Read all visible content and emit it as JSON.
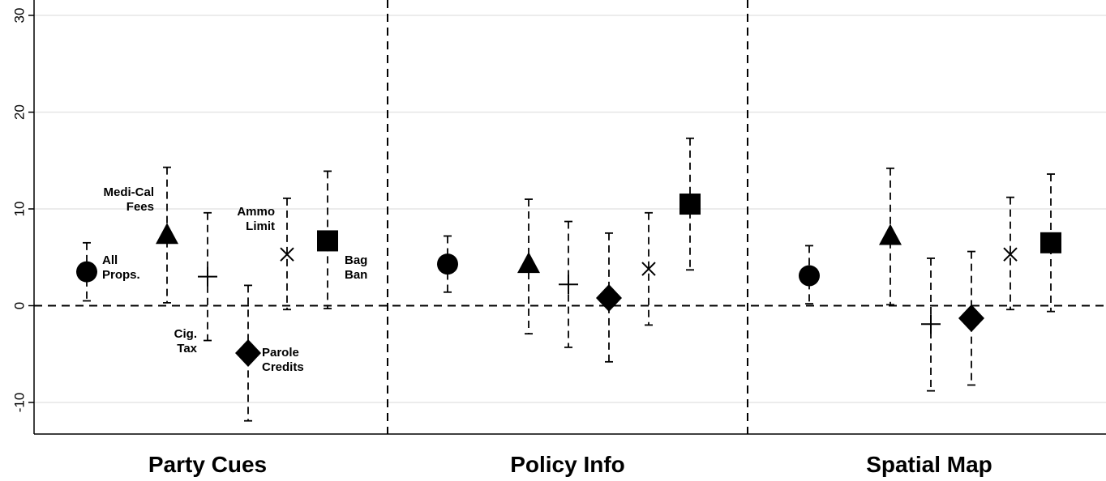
{
  "chart_data": {
    "type": "scatter",
    "subtype": "coefficient plot with confidence intervals",
    "groups": [
      "Party Cues",
      "Policy Info",
      "Spatial Map"
    ],
    "series": [
      {
        "marker": "circle",
        "label": "All Props.",
        "estimates": [
          3.5,
          4.3,
          3.1
        ],
        "ci_low": [
          0.5,
          1.4,
          0.2
        ],
        "ci_high": [
          6.5,
          7.2,
          6.2
        ]
      },
      {
        "marker": "triangle",
        "label": "Medi-Cal Fees",
        "estimates": [
          7.3,
          4.3,
          7.2
        ],
        "ci_low": [
          0.3,
          -2.9,
          0.1
        ],
        "ci_high": [
          14.3,
          11.0,
          14.2
        ]
      },
      {
        "marker": "plus",
        "label": "Cig. Tax",
        "estimates": [
          3.0,
          2.2,
          -1.9
        ],
        "ci_low": [
          -3.6,
          -4.3,
          -8.8
        ],
        "ci_high": [
          9.6,
          8.7,
          4.9
        ]
      },
      {
        "marker": "diamond",
        "label": "Parole Credits",
        "estimates": [
          -4.9,
          0.8,
          -1.3
        ],
        "ci_low": [
          -11.9,
          -5.8,
          -8.2
        ],
        "ci_high": [
          2.1,
          7.5,
          5.6
        ]
      },
      {
        "marker": "x",
        "label": "Ammo Limit",
        "estimates": [
          5.3,
          3.8,
          5.3
        ],
        "ci_low": [
          -0.4,
          -2.0,
          -0.4
        ],
        "ci_high": [
          11.1,
          9.6,
          11.2
        ]
      },
      {
        "marker": "square",
        "label": "Bag Ban",
        "estimates": [
          6.7,
          10.5,
          6.5
        ],
        "ci_low": [
          -0.3,
          3.7,
          -0.6
        ],
        "ci_high": [
          13.9,
          17.3,
          13.6
        ]
      }
    ],
    "ylim": [
      -13,
      31
    ],
    "yticks": [
      -10,
      0,
      10,
      20,
      30
    ],
    "ytick_labels": [
      "-10",
      "0",
      "10",
      "20",
      "30"
    ],
    "grid": true,
    "reference_line": 0,
    "annotations": [
      {
        "lines": [
          "All",
          "Props."
        ]
      },
      {
        "lines": [
          "Medi-Cal",
          "Fees"
        ]
      },
      {
        "lines": [
          "Cig.",
          "Tax"
        ]
      },
      {
        "lines": [
          "Parole",
          "Credits"
        ]
      },
      {
        "lines": [
          "Ammo",
          "Limit"
        ]
      },
      {
        "lines": [
          "Bag",
          "Ban"
        ]
      }
    ]
  }
}
